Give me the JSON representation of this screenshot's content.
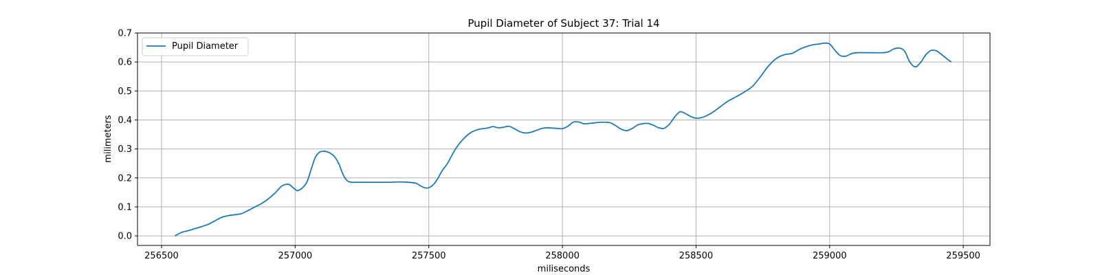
{
  "chart_data": {
    "type": "line",
    "title": "Pupil Diameter of Subject 37: Trial 14",
    "xlabel": "miliseconds",
    "ylabel": "milimeters",
    "xlim": [
      256410,
      259600
    ],
    "ylim": [
      -0.033,
      0.7
    ],
    "xticks": [
      256500,
      257000,
      257500,
      258000,
      258500,
      259000,
      259500
    ],
    "yticks": [
      0.0,
      0.1,
      0.2,
      0.3,
      0.4,
      0.5,
      0.6,
      0.7
    ],
    "xtick_labels": [
      "256500",
      "257000",
      "257500",
      "258000",
      "258500",
      "259000",
      "259500"
    ],
    "ytick_labels": [
      "0.0",
      "0.1",
      "0.2",
      "0.3",
      "0.4",
      "0.5",
      "0.6",
      "0.7"
    ],
    "grid": true,
    "legend": {
      "position": "top-left",
      "entries": [
        "Pupil Diameter"
      ]
    },
    "series": [
      {
        "name": "Pupil Diameter",
        "color": "#1f77b4",
        "x": [
          256550,
          256575,
          256600,
          256625,
          256650,
          256675,
          256700,
          256725,
          256750,
          256775,
          256800,
          256825,
          256850,
          256875,
          256900,
          256925,
          256950,
          256975,
          256990,
          257005,
          257015,
          257030,
          257045,
          257060,
          257075,
          257090,
          257105,
          257120,
          257135,
          257150,
          257165,
          257180,
          257195,
          257210,
          257225,
          257240,
          257255,
          257270,
          257300,
          257350,
          257400,
          257450,
          257470,
          257490,
          257505,
          257520,
          257535,
          257550,
          257570,
          257600,
          257630,
          257660,
          257690,
          257720,
          257740,
          257760,
          257780,
          257800,
          257820,
          257840,
          257860,
          257880,
          257900,
          257920,
          257940,
          257960,
          257980,
          258000,
          258020,
          258040,
          258060,
          258080,
          258100,
          258120,
          258140,
          258160,
          258180,
          258200,
          258220,
          258240,
          258260,
          258280,
          258300,
          258320,
          258340,
          258360,
          258380,
          258400,
          258420,
          258440,
          258460,
          258480,
          258500,
          258520,
          258540,
          258560,
          258580,
          258600,
          258620,
          258650,
          258680,
          258710,
          258740,
          258770,
          258800,
          258830,
          258860,
          258890,
          258920,
          258940,
          258960,
          258980,
          259000,
          259020,
          259040,
          259060,
          259080,
          259100,
          259150,
          259200,
          259220,
          259240,
          259260,
          259280,
          259300,
          259320,
          259340,
          259360,
          259380,
          259400,
          259420,
          259440,
          259455
        ],
        "y": [
          0.0,
          0.012,
          0.018,
          0.025,
          0.032,
          0.04,
          0.052,
          0.064,
          0.07,
          0.073,
          0.077,
          0.088,
          0.1,
          0.112,
          0.128,
          0.148,
          0.172,
          0.178,
          0.168,
          0.157,
          0.158,
          0.168,
          0.188,
          0.23,
          0.27,
          0.288,
          0.292,
          0.29,
          0.283,
          0.27,
          0.245,
          0.21,
          0.19,
          0.185,
          0.185,
          0.185,
          0.185,
          0.185,
          0.185,
          0.185,
          0.186,
          0.182,
          0.172,
          0.165,
          0.168,
          0.18,
          0.2,
          0.225,
          0.25,
          0.3,
          0.335,
          0.358,
          0.368,
          0.372,
          0.377,
          0.373,
          0.375,
          0.378,
          0.37,
          0.36,
          0.355,
          0.357,
          0.363,
          0.37,
          0.373,
          0.372,
          0.371,
          0.37,
          0.378,
          0.392,
          0.393,
          0.387,
          0.388,
          0.39,
          0.392,
          0.392,
          0.39,
          0.38,
          0.368,
          0.363,
          0.37,
          0.382,
          0.387,
          0.388,
          0.382,
          0.373,
          0.371,
          0.385,
          0.41,
          0.428,
          0.422,
          0.412,
          0.406,
          0.408,
          0.415,
          0.425,
          0.438,
          0.452,
          0.465,
          0.48,
          0.496,
          0.515,
          0.548,
          0.585,
          0.612,
          0.625,
          0.63,
          0.645,
          0.655,
          0.66,
          0.662,
          0.665,
          0.662,
          0.64,
          0.622,
          0.62,
          0.628,
          0.632,
          0.632,
          0.632,
          0.635,
          0.645,
          0.648,
          0.638,
          0.6,
          0.583,
          0.598,
          0.625,
          0.64,
          0.638,
          0.625,
          0.61,
          0.6
        ]
      }
    ]
  }
}
